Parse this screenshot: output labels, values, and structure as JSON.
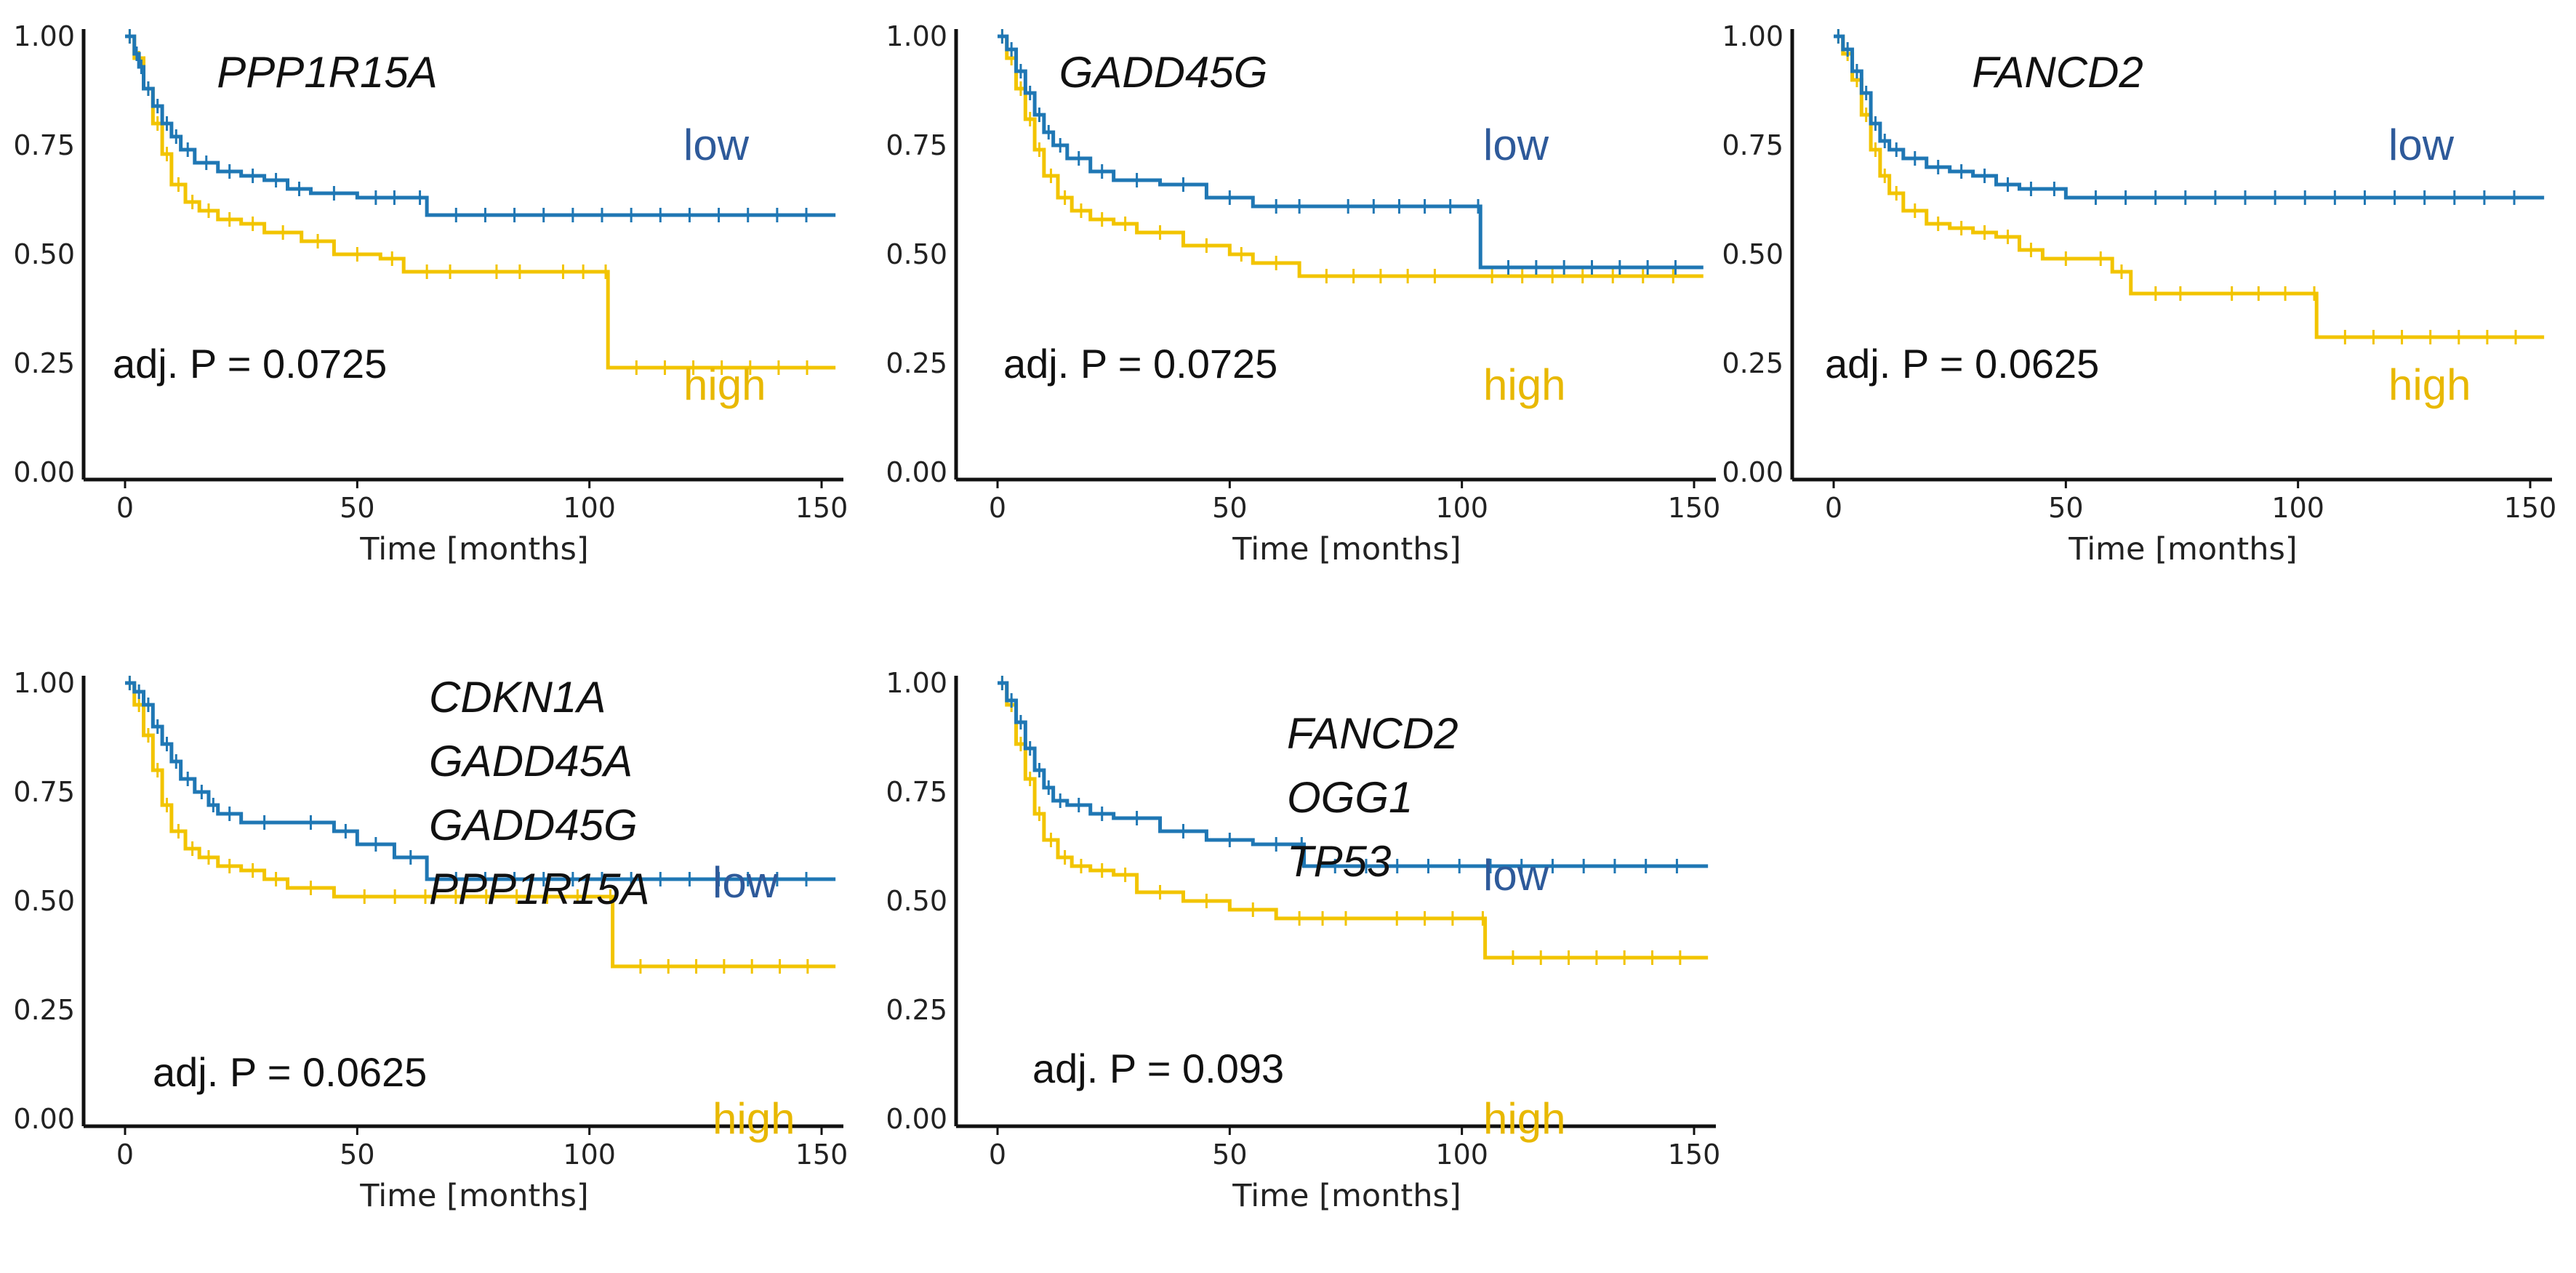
{
  "colors": {
    "low": "#1f77b4",
    "high": "#f2c400",
    "low_label": "#2e5a9a",
    "high_label": "#e8b800",
    "axis": "#111111"
  },
  "chart_data": [
    {
      "type": "line",
      "title": "PPP1R15A",
      "genes": [
        "PPP1R15A"
      ],
      "xlabel": "Time [months]",
      "ylabel": "",
      "xlim": [
        -8,
        155
      ],
      "ylim": [
        0,
        1
      ],
      "xticks": [
        "0",
        "50",
        "100",
        "150"
      ],
      "yticks": [
        "0.00",
        "0.25",
        "0.50",
        "0.75",
        "1.00"
      ],
      "pvalue_text": "adj. P = 0.0725",
      "series": [
        {
          "name": "low",
          "label": "low",
          "x": [
            0,
            2,
            3,
            4,
            6,
            8,
            10,
            12,
            15,
            20,
            25,
            30,
            35,
            40,
            50,
            62,
            65,
            153
          ],
          "y": [
            1.0,
            0.96,
            0.93,
            0.88,
            0.84,
            0.8,
            0.77,
            0.74,
            0.71,
            0.69,
            0.68,
            0.67,
            0.65,
            0.64,
            0.63,
            0.63,
            0.59,
            0.59
          ]
        },
        {
          "name": "high",
          "label": "high",
          "x": [
            0,
            2,
            4,
            6,
            8,
            10,
            13,
            16,
            20,
            25,
            30,
            38,
            45,
            55,
            60,
            75,
            90,
            103,
            104,
            153
          ],
          "y": [
            1.0,
            0.95,
            0.88,
            0.8,
            0.73,
            0.66,
            0.62,
            0.6,
            0.58,
            0.57,
            0.55,
            0.53,
            0.5,
            0.49,
            0.46,
            0.46,
            0.46,
            0.46,
            0.24,
            0.24
          ]
        }
      ]
    },
    {
      "type": "line",
      "title": "GADD45G",
      "genes": [
        "GADD45G"
      ],
      "xlabel": "Time [months]",
      "ylabel": "",
      "xlim": [
        -8,
        155
      ],
      "ylim": [
        0,
        1
      ],
      "xticks": [
        "0",
        "50",
        "100",
        "150"
      ],
      "yticks": [
        "0.00",
        "0.25",
        "0.50",
        "0.75",
        "1.00"
      ],
      "pvalue_text": "adj. P = 0.0725",
      "series": [
        {
          "name": "low",
          "label": "low",
          "x": [
            0,
            2,
            4,
            6,
            8,
            10,
            12,
            15,
            20,
            25,
            35,
            45,
            55,
            70,
            103,
            104,
            152
          ],
          "y": [
            1.0,
            0.97,
            0.92,
            0.87,
            0.82,
            0.78,
            0.75,
            0.72,
            0.69,
            0.67,
            0.66,
            0.63,
            0.61,
            0.61,
            0.61,
            0.47,
            0.47
          ]
        },
        {
          "name": "high",
          "label": "high",
          "x": [
            0,
            2,
            4,
            6,
            8,
            10,
            13,
            16,
            20,
            25,
            30,
            40,
            50,
            55,
            65,
            100,
            152
          ],
          "y": [
            1.0,
            0.95,
            0.88,
            0.81,
            0.74,
            0.68,
            0.63,
            0.6,
            0.58,
            0.57,
            0.55,
            0.52,
            0.5,
            0.48,
            0.45,
            0.45,
            0.45
          ]
        }
      ]
    },
    {
      "type": "line",
      "title": "FANCD2",
      "genes": [
        "FANCD2"
      ],
      "xlabel": "Time [months]",
      "ylabel": "",
      "xlim": [
        -8,
        155
      ],
      "ylim": [
        0,
        1
      ],
      "xticks": [
        "0",
        "50",
        "100",
        "150"
      ],
      "yticks": [
        "0.00",
        "0.25",
        "0.50",
        "0.75",
        "1.00"
      ],
      "pvalue_text": "adj. P = 0.0625",
      "series": [
        {
          "name": "low",
          "label": "low",
          "x": [
            0,
            2,
            4,
            6,
            8,
            10,
            12,
            15,
            20,
            25,
            30,
            35,
            40,
            45,
            50,
            153
          ],
          "y": [
            1.0,
            0.97,
            0.92,
            0.87,
            0.8,
            0.76,
            0.74,
            0.72,
            0.7,
            0.69,
            0.68,
            0.66,
            0.65,
            0.65,
            0.63,
            0.63
          ]
        },
        {
          "name": "high",
          "label": "high",
          "x": [
            0,
            2,
            4,
            6,
            8,
            10,
            12,
            15,
            20,
            25,
            30,
            35,
            40,
            45,
            55,
            60,
            64,
            80,
            103,
            104,
            153
          ],
          "y": [
            1.0,
            0.96,
            0.9,
            0.82,
            0.74,
            0.68,
            0.64,
            0.6,
            0.57,
            0.56,
            0.55,
            0.54,
            0.51,
            0.49,
            0.49,
            0.46,
            0.41,
            0.41,
            0.41,
            0.31,
            0.31
          ]
        }
      ]
    },
    {
      "type": "line",
      "title": "CDKN1A GADD45A GADD45G PPP1R15A",
      "genes": [
        "CDKN1A",
        "GADD45A",
        "GADD45G",
        "PPP1R15A"
      ],
      "xlabel": "Time [months]",
      "ylabel": "",
      "xlim": [
        -8,
        155
      ],
      "ylim": [
        0,
        1
      ],
      "xticks": [
        "0",
        "50",
        "100",
        "150"
      ],
      "yticks": [
        "0.00",
        "0.25",
        "0.50",
        "0.75",
        "1.00"
      ],
      "pvalue_text": "adj. P = 0.0625",
      "series": [
        {
          "name": "low",
          "label": "low",
          "x": [
            0,
            2,
            4,
            6,
            8,
            10,
            12,
            15,
            18,
            20,
            25,
            35,
            45,
            50,
            58,
            65,
            153
          ],
          "y": [
            1.0,
            0.98,
            0.95,
            0.9,
            0.86,
            0.82,
            0.78,
            0.75,
            0.72,
            0.7,
            0.68,
            0.68,
            0.66,
            0.63,
            0.6,
            0.55,
            0.55
          ]
        },
        {
          "name": "high",
          "label": "high",
          "x": [
            0,
            2,
            4,
            6,
            8,
            10,
            13,
            16,
            20,
            25,
            30,
            35,
            45,
            104,
            105,
            153
          ],
          "y": [
            1.0,
            0.95,
            0.88,
            0.8,
            0.72,
            0.66,
            0.62,
            0.6,
            0.58,
            0.57,
            0.55,
            0.53,
            0.51,
            0.51,
            0.35,
            0.35
          ]
        }
      ]
    },
    {
      "type": "line",
      "title": "FANCD2 OGG1 TP53",
      "genes": [
        "FANCD2",
        "OGG1",
        "TP53"
      ],
      "xlabel": "Time [months]",
      "ylabel": "",
      "xlim": [
        -8,
        155
      ],
      "ylim": [
        0,
        1
      ],
      "xticks": [
        "0",
        "50",
        "100",
        "150"
      ],
      "yticks": [
        "0.00",
        "0.25",
        "0.50",
        "0.75",
        "1.00"
      ],
      "pvalue_text": "adj. P = 0.093",
      "series": [
        {
          "name": "low",
          "label": "low",
          "x": [
            0,
            2,
            4,
            6,
            8,
            10,
            12,
            15,
            20,
            25,
            35,
            45,
            55,
            65,
            66,
            153
          ],
          "y": [
            1.0,
            0.96,
            0.91,
            0.85,
            0.8,
            0.76,
            0.73,
            0.72,
            0.7,
            0.69,
            0.66,
            0.64,
            0.63,
            0.63,
            0.58,
            0.58
          ]
        },
        {
          "name": "high",
          "label": "high",
          "x": [
            0,
            2,
            4,
            6,
            8,
            10,
            13,
            16,
            20,
            25,
            30,
            40,
            50,
            60,
            80,
            104,
            105,
            153
          ],
          "y": [
            1.0,
            0.95,
            0.86,
            0.78,
            0.7,
            0.64,
            0.6,
            0.58,
            0.57,
            0.56,
            0.52,
            0.5,
            0.48,
            0.46,
            0.46,
            0.46,
            0.37,
            0.37
          ]
        }
      ]
    }
  ]
}
